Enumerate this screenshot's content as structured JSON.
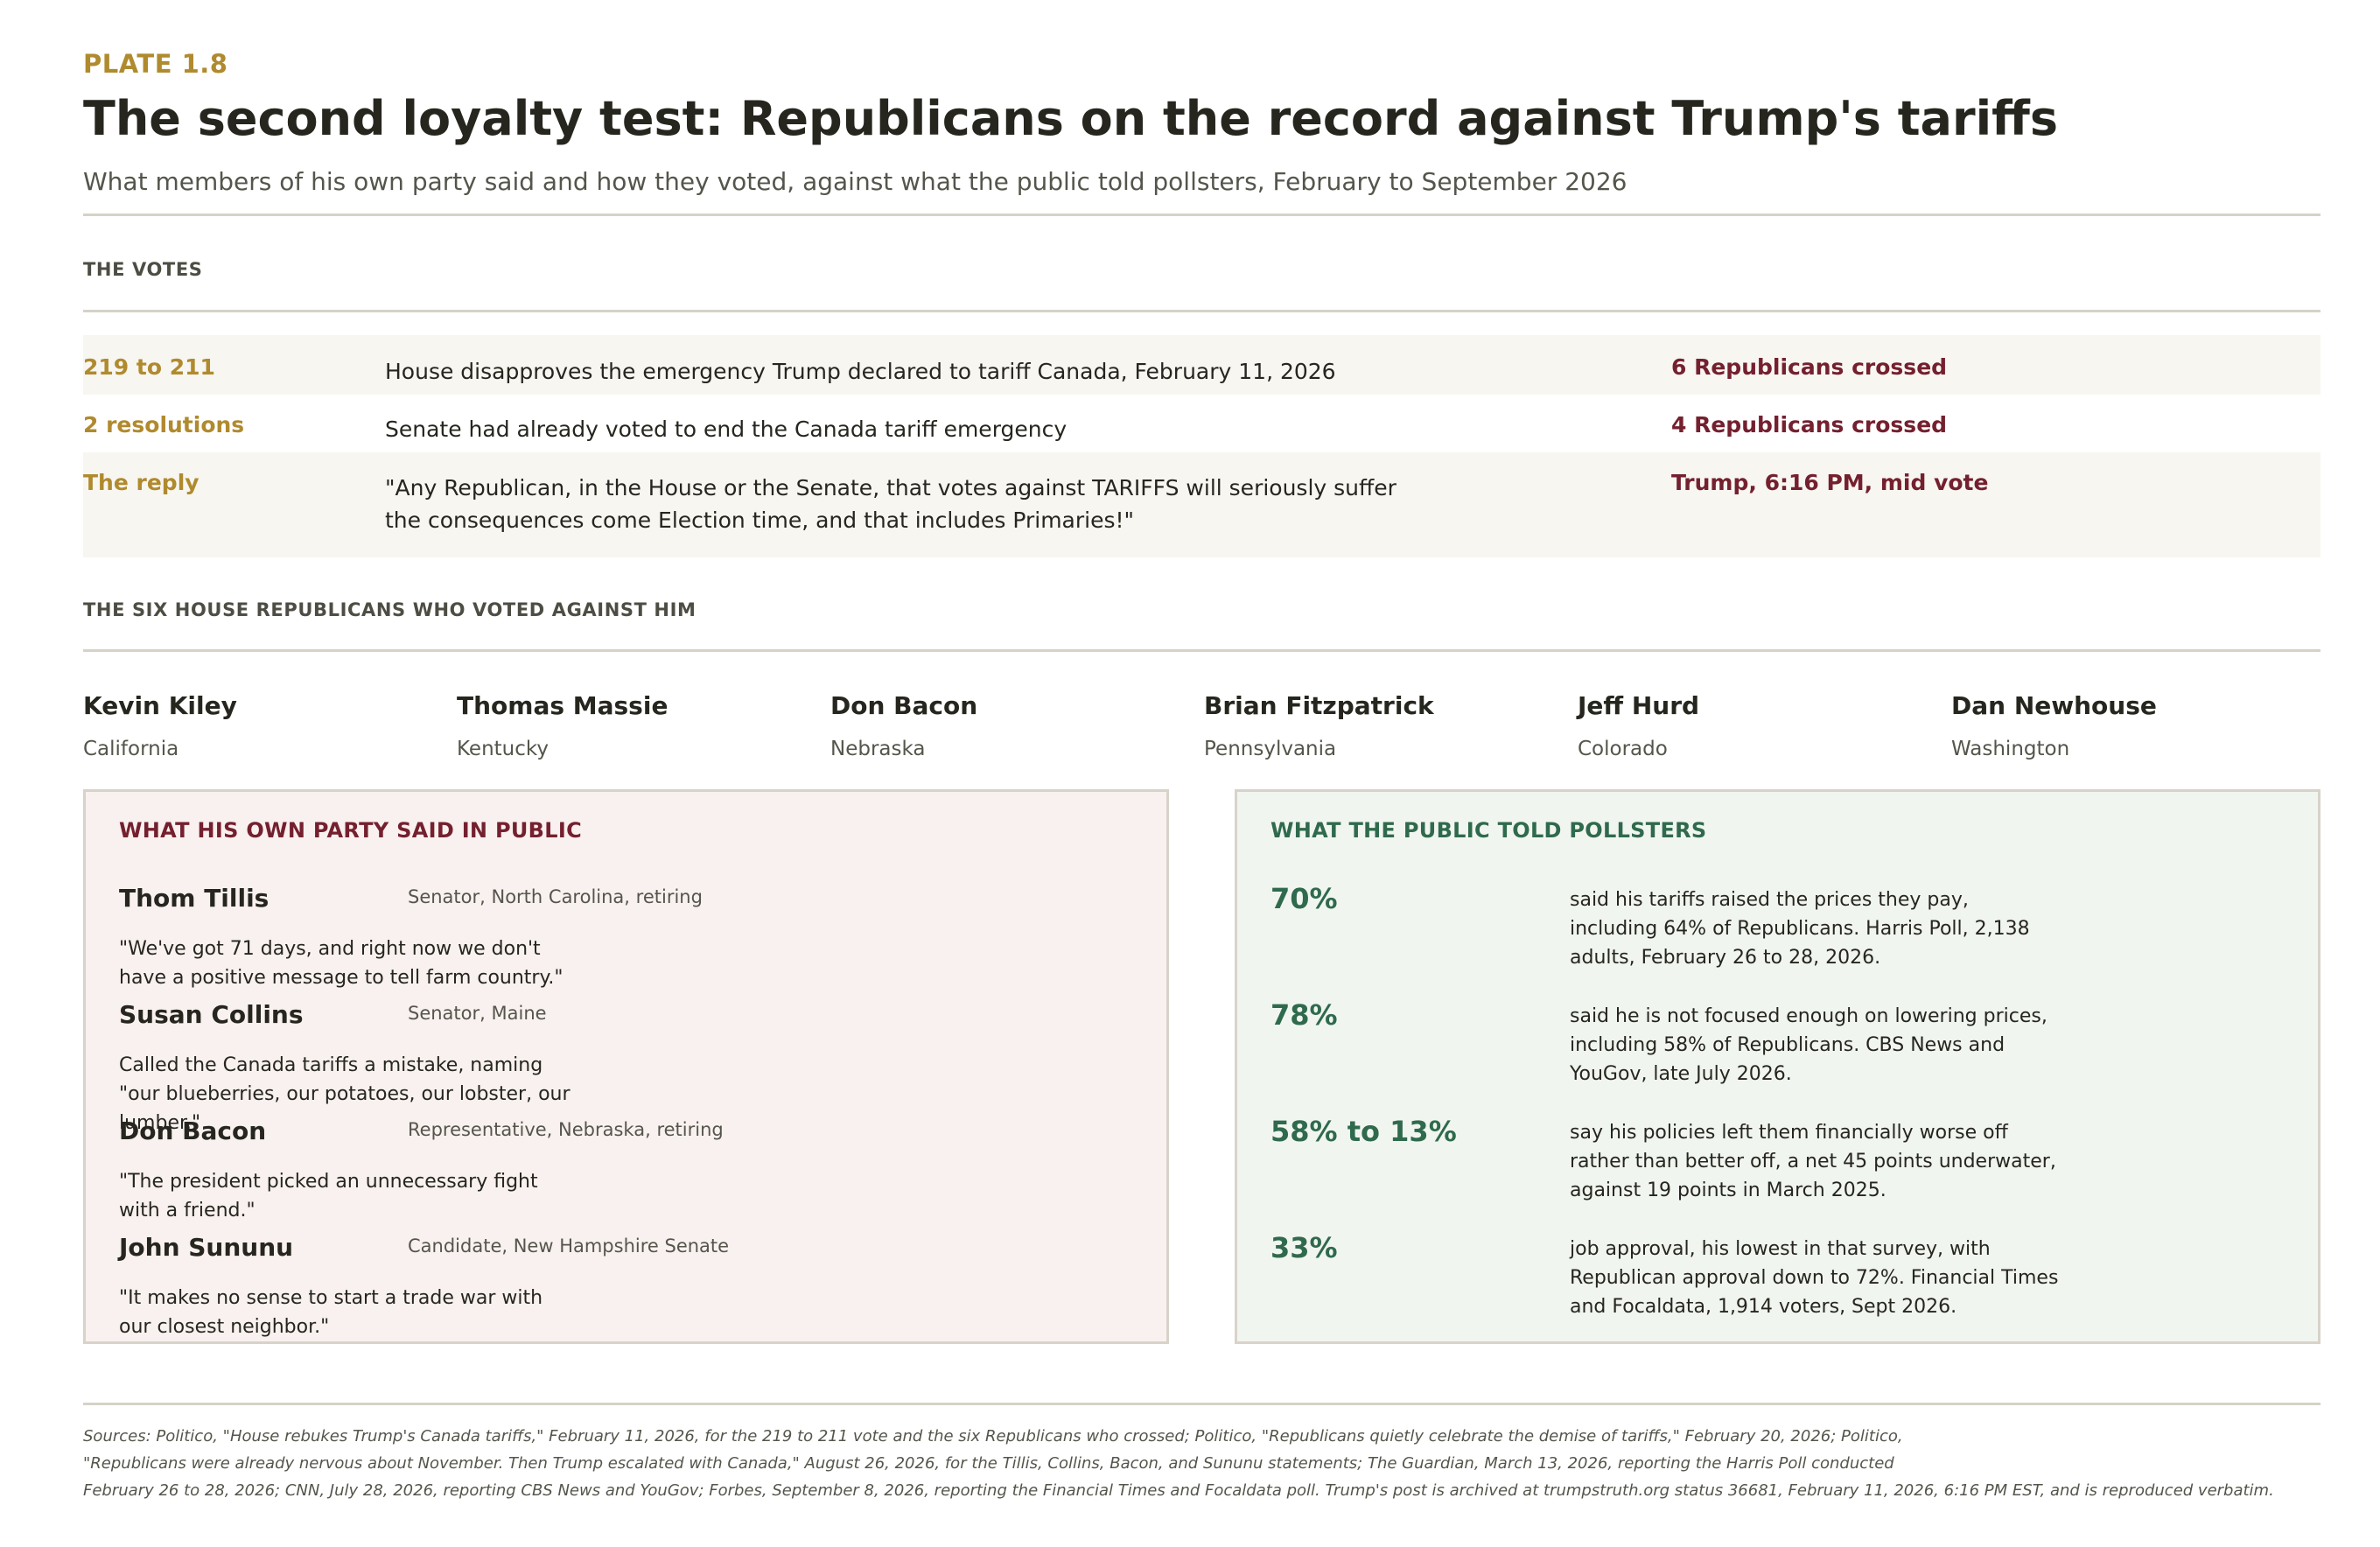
{
  "header": {
    "plate": "PLATE 1.8",
    "title": "The second loyalty test: Republicans on the record against Trump's tariffs",
    "subtitle": "What members of his own party said and how they voted, against what the public told pollsters, February to September 2026"
  },
  "votes": {
    "label": "THE VOTES",
    "rows": [
      {
        "key": "219 to 211",
        "text": "House disapproves the emergency Trump declared to tariff Canada, February 11, 2026",
        "note": "6 Republicans crossed"
      },
      {
        "key": "2 resolutions",
        "text": "Senate had already voted to end the Canada tariff emergency",
        "note": "4 Republicans crossed"
      },
      {
        "key": "The reply",
        "text": "\"Any Republican, in the House or the Senate, that votes against TARIFFS will seriously suffer the consequences come Election time, and that includes Primaries!\"",
        "note": "Trump, 6:16 PM, mid vote"
      }
    ]
  },
  "members": {
    "label": "THE SIX HOUSE REPUBLICANS WHO VOTED AGAINST HIM",
    "list": [
      {
        "name": "Kevin Kiley",
        "state": "California"
      },
      {
        "name": "Thomas Massie",
        "state": "Kentucky"
      },
      {
        "name": "Don Bacon",
        "state": "Nebraska"
      },
      {
        "name": "Brian Fitzpatrick",
        "state": "Pennsylvania"
      },
      {
        "name": "Jeff Hurd",
        "state": "Colorado"
      },
      {
        "name": "Dan Newhouse",
        "state": "Washington"
      }
    ]
  },
  "party_panel": {
    "heading": "WHAT HIS OWN PARTY SAID IN PUBLIC",
    "quotes": [
      {
        "name": "Thom Tillis",
        "role": "Senator, North Carolina, retiring",
        "text": "\"We've got 71 days, and right now we don't have a positive message to tell farm country.\""
      },
      {
        "name": "Susan Collins",
        "role": "Senator, Maine",
        "text": "Called the Canada tariffs a mistake, naming \"our blueberries, our potatoes, our lobster, our lumber.\""
      },
      {
        "name": "Don Bacon",
        "role": "Representative, Nebraska, retiring",
        "text": "\"The president picked an unnecessary fight with a friend.\""
      },
      {
        "name": "John Sununu",
        "role": "Candidate, New Hampshire Senate",
        "text": "\"It makes no sense to start a trade war with our closest neighbor.\""
      }
    ]
  },
  "public_panel": {
    "heading": "WHAT THE PUBLIC TOLD POLLSTERS",
    "stats": [
      {
        "value": "70%",
        "text": "said his tariffs raised the prices they pay, including 64% of Republicans. Harris Poll, 2,138 adults, February 26 to 28, 2026."
      },
      {
        "value": "78%",
        "text": "said he is not focused enough on lowering prices, including 58% of Republicans. CBS News and YouGov, late July 2026."
      },
      {
        "value": "58% to 13%",
        "text": "say his policies left them financially worse off rather than better off, a net 45 points underwater, against 19 points in March 2025."
      },
      {
        "value": "33%",
        "text": "job approval, his lowest in that survey, with Republican approval down to 72%. Financial Times and Focaldata, 1,914 voters, Sept 2026."
      }
    ]
  },
  "sources": {
    "line1": "Sources: Politico, \"House rebukes Trump's Canada tariffs,\" February 11, 2026, for the 219 to 211 vote and the six Republicans who crossed; Politico, \"Republicans quietly celebrate the demise of tariffs,\" February 20, 2026; Politico,",
    "line2": "\"Republicans were already nervous about November. Then Trump escalated with Canada,\" August 26, 2026, for the Tillis, Collins, Bacon, and Sununu statements; The Guardian, March 13, 2026, reporting the Harris Poll conducted",
    "line3": "February 26 to 28, 2026; CNN, July 28, 2026, reporting CBS News and YouGov; Forbes, September 8, 2026, reporting the Financial Times and Focaldata poll. Trump's post is archived at trumpstruth.org status 36681, February 11, 2026, 6:16 PM EST, and is reproduced verbatim."
  },
  "colors": {
    "gold": "#b08a2e",
    "maroon": "#74202f",
    "green": "#2f6a4c",
    "party_panel_bg": "#f9f1ef",
    "public_panel_bg": "#f1f5f0"
  }
}
